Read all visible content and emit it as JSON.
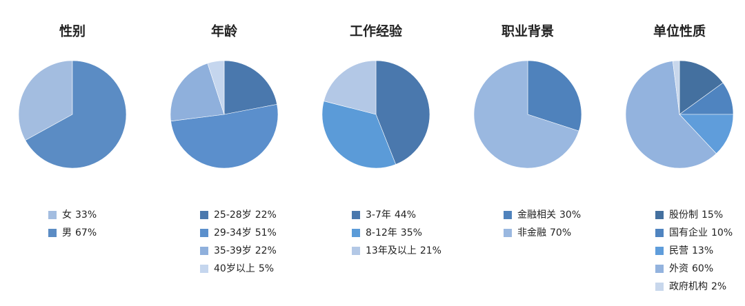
{
  "chart_data": [
    {
      "type": "pie",
      "title": "性别",
      "direction": "counterclockwise",
      "categories": [
        "女",
        "男"
      ],
      "values": [
        33,
        67
      ],
      "value_labels": [
        "33%",
        "67%"
      ],
      "colors": [
        "#a3bde0",
        "#5b8cc4"
      ]
    },
    {
      "type": "pie",
      "title": "年龄",
      "direction": "clockwise",
      "categories": [
        "25-28岁",
        "29-34岁",
        "35-39岁",
        "40岁以上"
      ],
      "values": [
        22,
        51,
        22,
        5
      ],
      "value_labels": [
        "22%",
        "51%",
        "22%",
        "5%"
      ],
      "colors": [
        "#4a78ad",
        "#5b8fcc",
        "#8fb0dc",
        "#c5d6ee"
      ]
    },
    {
      "type": "pie",
      "title": "工作经验",
      "direction": "clockwise",
      "categories": [
        "3-7年",
        "8-12年",
        "13年及以上"
      ],
      "values": [
        44,
        35,
        21
      ],
      "value_labels": [
        "44%",
        "35%",
        "21%"
      ],
      "colors": [
        "#4a78ad",
        "#5b9bd8",
        "#b3c8e6"
      ]
    },
    {
      "type": "pie",
      "title": "职业背景",
      "direction": "clockwise",
      "categories": [
        "金融相关",
        "非金融"
      ],
      "values": [
        30,
        70
      ],
      "value_labels": [
        "30%",
        "70%"
      ],
      "colors": [
        "#4f82bc",
        "#9ab8e0"
      ]
    },
    {
      "type": "pie",
      "title": "单位性质",
      "direction": "clockwise",
      "categories": [
        "股份制",
        "国有企业",
        "民营",
        "外资",
        "政府机构"
      ],
      "values": [
        15,
        10,
        13,
        60,
        2
      ],
      "value_labels": [
        "15%",
        "10%",
        "13%",
        "60%",
        "2%"
      ],
      "colors": [
        "#44709f",
        "#4f84c0",
        "#5f9ddb",
        "#93b3de",
        "#c8d7ec"
      ]
    }
  ]
}
